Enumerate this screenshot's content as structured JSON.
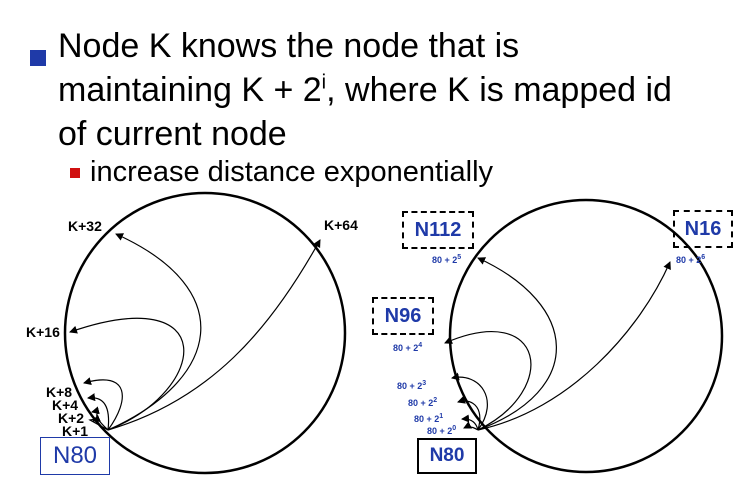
{
  "slide": {
    "main_bullet": {
      "line1": "Node K knows the node that is",
      "line2_a": "maintaining K + 2",
      "line2_sup": "i",
      "line2_b": ", where K is mapped id",
      "line3": "of current node"
    },
    "sub_bullet": "increase distance exponentially"
  },
  "left_diagram": {
    "node_label": "N80",
    "fingers": [
      "K+1",
      "K+2",
      "K+4",
      "K+8",
      "K+16",
      "K+32",
      "K+64"
    ]
  },
  "right_diagram": {
    "node_label": "N80",
    "targets": [
      "N112",
      "N16",
      "N96"
    ],
    "fingers": [
      {
        "base": "80 + 2",
        "exp": "0"
      },
      {
        "base": "80 + 2",
        "exp": "1"
      },
      {
        "base": "80 + 2",
        "exp": "2"
      },
      {
        "base": "80 + 2",
        "exp": "3"
      },
      {
        "base": "80 + 2",
        "exp": "4"
      },
      {
        "base": "80 + 2",
        "exp": "5"
      },
      {
        "base": "80 + 2",
        "exp": "6"
      }
    ]
  },
  "colors": {
    "bullet": "#1f3aa8",
    "sub_bullet": "#d01010",
    "node_text": "#1f3aa8"
  }
}
